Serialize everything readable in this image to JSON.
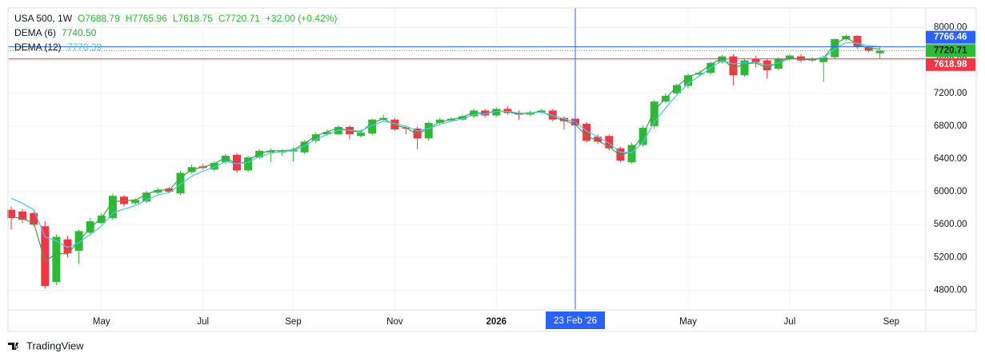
{
  "chart_data": {
    "type": "candlestick",
    "header": {
      "symbol": "USA 500, 1W",
      "open": "O7688.79",
      "high": "H7765.96",
      "low": "L7618.75",
      "close": "C7720.71",
      "change": "+32.00 (+0.42%)"
    },
    "brand": "TradingView",
    "up_color": "#2dbb36",
    "down_color": "#f23645",
    "open": [
      5780,
      5760,
      5740,
      5580,
      4900,
      5420,
      5280,
      5500,
      5620,
      5680,
      5940,
      5860,
      5880,
      5990,
      6040,
      5980,
      6240,
      6310,
      6270,
      6360,
      6450,
      6260,
      6420,
      6480,
      6480,
      6490,
      6480,
      6620,
      6700,
      6700,
      6790,
      6680,
      6710,
      6880,
      6880,
      6780,
      6770,
      6650,
      6840,
      6870,
      6880,
      6920,
      6990,
      6930,
      7010,
      6960,
      6940,
      6970,
      6990,
      6900,
      6890,
      6830,
      6670,
      6680,
      6530,
      6360,
      6570,
      6800,
      7100,
      7200,
      7290,
      7430,
      7450,
      7580,
      7650,
      7420,
      7620,
      7600,
      7500,
      7620,
      7650,
      7600,
      7580,
      7640,
      7860,
      7900,
      7760,
      7688.79
    ],
    "high": [
      5820,
      5790,
      5760,
      5640,
      5480,
      5460,
      5540,
      5680,
      5740,
      5980,
      5960,
      5920,
      6010,
      6050,
      6060,
      6250,
      6330,
      6340,
      6370,
      6460,
      6470,
      6440,
      6520,
      6530,
      6520,
      6540,
      6630,
      6720,
      6760,
      6810,
      6810,
      6760,
      6890,
      6940,
      6900,
      6800,
      6790,
      6860,
      6900,
      6910,
      6940,
      7010,
      7010,
      7030,
      7040,
      6990,
      6990,
      7010,
      7010,
      6920,
      6900,
      6850,
      6700,
      6700,
      6550,
      6600,
      6810,
      7120,
      7200,
      7320,
      7440,
      7480,
      7590,
      7670,
      7680,
      7620,
      7660,
      7620,
      7640,
      7680,
      7680,
      7640,
      7660,
      7870,
      7920,
      7910,
      7780,
      7765.96
    ],
    "low": [
      5540,
      5620,
      5580,
      4820,
      4860,
      5200,
      5120,
      5480,
      5600,
      5660,
      5820,
      5840,
      5860,
      5970,
      5980,
      5960,
      6220,
      6270,
      6250,
      6340,
      6230,
      6240,
      6400,
      6360,
      6440,
      6370,
      6460,
      6590,
      6680,
      6690,
      6640,
      6660,
      6690,
      6860,
      6740,
      6700,
      6520,
      6620,
      6820,
      6850,
      6860,
      6900,
      6910,
      6910,
      6940,
      6880,
      6920,
      6950,
      6860,
      6760,
      6780,
      6600,
      6580,
      6500,
      6360,
      6340,
      6550,
      6770,
      7080,
      7180,
      7260,
      7400,
      7430,
      7560,
      7300,
      7400,
      7520,
      7380,
      7480,
      7600,
      7580,
      7580,
      7340,
      7620,
      7840,
      7740,
      7700,
      7618.75
    ],
    "close": [
      5680,
      5660,
      5600,
      4850,
      5450,
      5250,
      5520,
      5640,
      5710,
      5950,
      5850,
      5900,
      5990,
      6020,
      6000,
      6230,
      6300,
      6290,
      6350,
      6440,
      6260,
      6420,
      6500,
      6500,
      6500,
      6510,
      6610,
      6700,
      6730,
      6790,
      6700,
      6720,
      6880,
      6900,
      6760,
      6770,
      6650,
      6840,
      6880,
      6890,
      6920,
      6990,
      6930,
      7010,
      6960,
      6940,
      6970,
      6990,
      6880,
      6860,
      6810,
      6620,
      6610,
      6530,
      6380,
      6570,
      6780,
      7100,
      7170,
      7300,
      7420,
      7450,
      7570,
      7650,
      7420,
      7600,
      7580,
      7480,
      7620,
      7660,
      7600,
      7610,
      7640,
      7860,
      7900,
      7770,
      7720,
      7720.71
    ],
    "series": [
      {
        "name": "DEMA (6)",
        "color": "#43a047",
        "legend_value": "7740.50",
        "values": [
          5700,
          5670,
          5620,
          5150,
          5250,
          5240,
          5400,
          5560,
          5680,
          5880,
          5890,
          5900,
          5970,
          6020,
          6020,
          6170,
          6270,
          6300,
          6340,
          6420,
          6330,
          6380,
          6470,
          6500,
          6500,
          6510,
          6590,
          6680,
          6730,
          6780,
          6740,
          6730,
          6840,
          6890,
          6810,
          6780,
          6700,
          6780,
          6850,
          6880,
          6910,
          6970,
          6950,
          6990,
          6970,
          6950,
          6960,
          6980,
          6910,
          6870,
          6820,
          6680,
          6620,
          6550,
          6440,
          6500,
          6690,
          6990,
          7140,
          7280,
          7400,
          7450,
          7550,
          7630,
          7500,
          7560,
          7570,
          7510,
          7580,
          7640,
          7610,
          7610,
          7630,
          7800,
          7880,
          7800,
          7750,
          7740.5
        ]
      },
      {
        "name": "DEMA (12)",
        "color": "#4fc3f7",
        "legend_value": "7770.39",
        "values": [
          5920,
          5860,
          5780,
          5450,
          5400,
          5320,
          5380,
          5480,
          5580,
          5740,
          5790,
          5830,
          5900,
          5960,
          5990,
          6090,
          6190,
          6250,
          6300,
          6370,
          6340,
          6360,
          6430,
          6470,
          6490,
          6500,
          6560,
          6640,
          6700,
          6750,
          6750,
          6740,
          6810,
          6860,
          6830,
          6800,
          6740,
          6770,
          6820,
          6860,
          6890,
          6940,
          6950,
          6980,
          6980,
          6960,
          6960,
          6970,
          6930,
          6890,
          6850,
          6740,
          6670,
          6590,
          6480,
          6480,
          6600,
          6850,
          7020,
          7180,
          7320,
          7410,
          7510,
          7600,
          7560,
          7570,
          7580,
          7540,
          7570,
          7620,
          7620,
          7620,
          7630,
          7740,
          7820,
          7810,
          7780,
          7770.39
        ]
      }
    ],
    "ylim": [
      4560,
      8240
    ],
    "yticks": [
      {
        "value": 4800,
        "label": "4800.00"
      },
      {
        "value": 5200,
        "label": "5200.00"
      },
      {
        "value": 5600,
        "label": "5600.00"
      },
      {
        "value": 6000,
        "label": "6000.00"
      },
      {
        "value": 6400,
        "label": "6400.00"
      },
      {
        "value": 6800,
        "label": "6800.00"
      },
      {
        "value": 7200,
        "label": "7200.00"
      },
      {
        "value": 7600,
        "label": "7600.00"
      },
      {
        "value": 8000,
        "label": "8000.00"
      }
    ],
    "xticks": [
      {
        "value": 8,
        "label": "May"
      },
      {
        "value": 17,
        "label": "Jul"
      },
      {
        "value": 25,
        "label": "Sep"
      },
      {
        "value": 34,
        "label": "Nov"
      },
      {
        "value": 43,
        "label": "2026"
      },
      {
        "value": 60,
        "label": "May"
      },
      {
        "value": 69,
        "label": "Jul"
      },
      {
        "value": 78,
        "label": "Sep"
      }
    ],
    "crosshair": {
      "x": {
        "value": 50,
        "label": "23 Feb '26"
      },
      "y": 7766.46
    },
    "price_line": 7618.98,
    "grid": true
  }
}
